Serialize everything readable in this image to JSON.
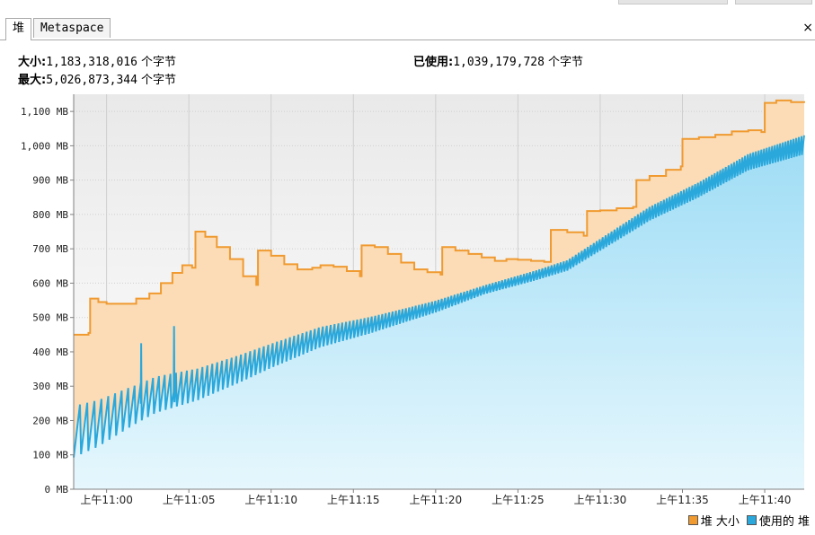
{
  "tabs": [
    {
      "label": "堆",
      "active": true
    },
    {
      "label": "Metaspace",
      "active": false
    }
  ],
  "close_icon": "×",
  "stats": {
    "size_label": "大小:",
    "size_value": "1,183,318,016",
    "max_label": "最大:",
    "max_value": "5,026,873,344",
    "used_label": "已使用:",
    "used_value": "1,039,179,728",
    "unit": "个字节"
  },
  "legend": [
    {
      "label": "堆 大小",
      "color": "#f09a30"
    },
    {
      "label": "使用的 堆",
      "color": "#2aa8dc"
    }
  ],
  "chart_data": {
    "type": "area",
    "ylim": [
      0,
      1150
    ],
    "y_ticks": [
      0,
      100,
      200,
      300,
      400,
      500,
      600,
      700,
      800,
      900,
      1000,
      1100
    ],
    "y_tick_labels": [
      "0 MB",
      "100 MB",
      "200 MB",
      "300 MB",
      "400 MB",
      "500 MB",
      "600 MB",
      "700 MB",
      "800 MB",
      "900 MB",
      "1,000 MB",
      "1,100 MB"
    ],
    "x_unit": "minutes after 10:58",
    "xlim": [
      0,
      44.4
    ],
    "x_ticks": [
      2,
      7,
      12,
      17,
      22,
      27,
      32,
      37,
      42
    ],
    "x_tick_labels": [
      "上午11:00",
      "上午11:05",
      "上午11:10",
      "上午11:15",
      "上午11:20",
      "上午11:25",
      "上午11:30",
      "上午11:35",
      "上午11:40"
    ],
    "series": [
      {
        "name": "堆 大小",
        "color": "#f09a30",
        "points": [
          [
            0,
            450
          ],
          [
            0.9,
            455
          ],
          [
            1.0,
            555
          ],
          [
            1.5,
            545
          ],
          [
            2.0,
            540
          ],
          [
            3.3,
            540
          ],
          [
            3.8,
            555
          ],
          [
            4.6,
            570
          ],
          [
            5.3,
            600
          ],
          [
            6.0,
            630
          ],
          [
            6.6,
            652
          ],
          [
            7.2,
            645
          ],
          [
            7.4,
            750
          ],
          [
            8.0,
            735
          ],
          [
            8.7,
            705
          ],
          [
            9.5,
            670
          ],
          [
            10.3,
            620
          ],
          [
            11.1,
            595
          ],
          [
            11.2,
            695
          ],
          [
            12.0,
            680
          ],
          [
            12.8,
            655
          ],
          [
            13.6,
            640
          ],
          [
            14.5,
            645
          ],
          [
            15.0,
            652
          ],
          [
            15.8,
            648
          ],
          [
            16.6,
            635
          ],
          [
            17.4,
            620
          ],
          [
            17.5,
            710
          ],
          [
            18.3,
            705
          ],
          [
            19.1,
            685
          ],
          [
            19.9,
            660
          ],
          [
            20.7,
            640
          ],
          [
            21.5,
            632
          ],
          [
            22.3,
            625
          ],
          [
            22.4,
            705
          ],
          [
            23.2,
            695
          ],
          [
            24.0,
            685
          ],
          [
            24.8,
            675
          ],
          [
            25.6,
            665
          ],
          [
            26.3,
            670
          ],
          [
            27.0,
            668
          ],
          [
            27.8,
            665
          ],
          [
            28.6,
            662
          ],
          [
            29.0,
            755
          ],
          [
            30.0,
            748
          ],
          [
            31.0,
            738
          ],
          [
            31.2,
            810
          ],
          [
            32.0,
            812
          ],
          [
            33.0,
            818
          ],
          [
            34.0,
            822
          ],
          [
            34.2,
            900
          ],
          [
            35.0,
            912
          ],
          [
            36.0,
            930
          ],
          [
            36.9,
            940
          ],
          [
            37.0,
            1020
          ],
          [
            38.0,
            1025
          ],
          [
            39.0,
            1032
          ],
          [
            40.0,
            1042
          ],
          [
            41.0,
            1045
          ],
          [
            41.8,
            1040
          ],
          [
            42.0,
            1125
          ],
          [
            42.7,
            1132
          ],
          [
            43.6,
            1127
          ],
          [
            44.4,
            1125
          ]
        ]
      },
      {
        "name": "使用的 堆",
        "color": "#2aa8dc",
        "trend": [
          [
            0,
            160
          ],
          [
            1.5,
            185
          ],
          [
            3.3,
            230
          ],
          [
            5,
            270
          ],
          [
            7.5,
            300
          ],
          [
            10,
            345
          ],
          [
            12,
            385
          ],
          [
            15,
            440
          ],
          [
            18,
            475
          ],
          [
            22,
            530
          ],
          [
            25,
            580
          ],
          [
            28,
            620
          ],
          [
            30,
            650
          ],
          [
            32,
            710
          ],
          [
            35,
            800
          ],
          [
            38,
            870
          ],
          [
            41,
            950
          ],
          [
            44.4,
            1000
          ]
        ],
        "sawtooth_amp": [
          [
            0,
            150
          ],
          [
            4,
            110
          ],
          [
            7,
            95
          ],
          [
            12,
            70
          ],
          [
            20,
            40
          ],
          [
            25,
            25
          ],
          [
            30,
            30
          ],
          [
            35,
            40
          ],
          [
            40,
            45
          ],
          [
            44.4,
            55
          ]
        ],
        "sawtooth_period": [
          [
            0,
            0.45
          ],
          [
            8,
            0.3
          ],
          [
            20,
            0.2
          ],
          [
            44.4,
            0.16
          ]
        ],
        "spikes": [
          [
            4.1,
            425
          ],
          [
            6.1,
            475
          ]
        ]
      }
    ]
  }
}
